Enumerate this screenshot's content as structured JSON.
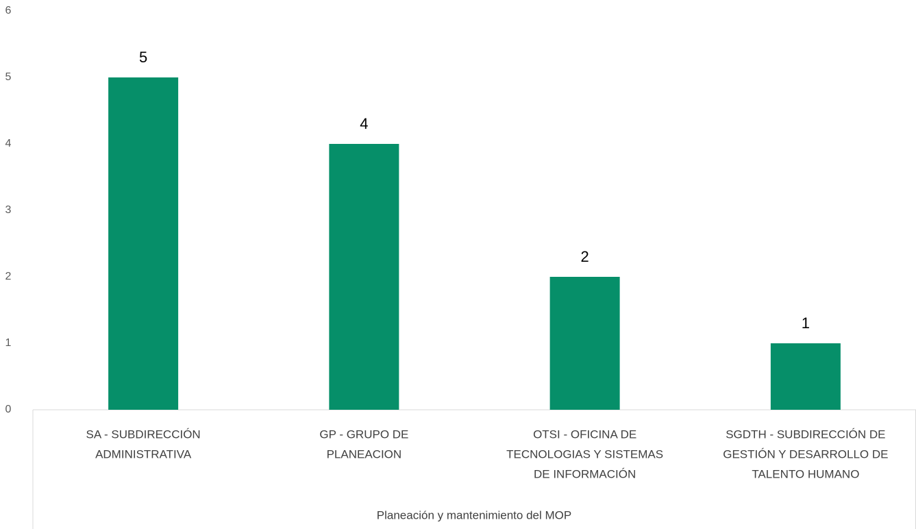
{
  "chart_data": {
    "type": "bar",
    "categories": [
      [
        "SA - SUBDIRECCIÓN",
        "ADMINISTRATIVA"
      ],
      [
        "GP - GRUPO DE",
        "PLANEACION"
      ],
      [
        "OTSI - OFICINA DE",
        "TECNOLOGIAS Y SISTEMAS",
        "DE INFORMACIÓN"
      ],
      [
        "SGDTH - SUBDIRECCIÓN DE",
        "GESTIÓN Y DESARROLLO DE",
        "TALENTO HUMANO"
      ]
    ],
    "x_group_label": "Planeación y mantenimiento del MOP",
    "values": [
      5,
      4,
      2,
      1
    ],
    "color": "#068f69",
    "ylim": [
      0,
      6
    ],
    "yticks": [
      0,
      1,
      2,
      3,
      4,
      5,
      6
    ],
    "grid": false
  }
}
